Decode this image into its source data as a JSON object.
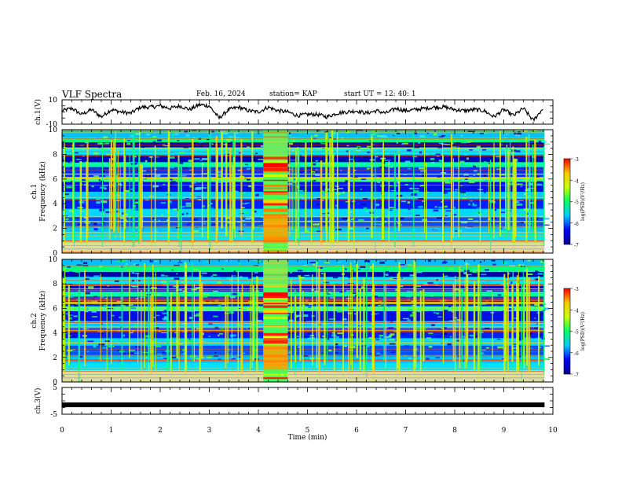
{
  "header": {
    "title": "VLF Spectra",
    "date": "Feb. 16, 2024",
    "station": "station= KAP",
    "start": "start  UT  =   12: 40: 1"
  },
  "chart_data": [
    {
      "type": "line",
      "panel": "ch1_waveform",
      "ylabel": "ch.1(V)",
      "ylim": [
        -10,
        10
      ],
      "y_ticks": [
        "10",
        "-10"
      ],
      "xlim": [
        0,
        10
      ],
      "series": [
        {
          "color": "#000000",
          "x": [
            0,
            0.2,
            0.4,
            0.6,
            0.8,
            1.0,
            1.2,
            1.4,
            1.6,
            1.8,
            2.0,
            2.2,
            2.4,
            2.6,
            2.8,
            3.0,
            3.2,
            3.4,
            3.6,
            3.8,
            4.0,
            4.2,
            4.4,
            4.6,
            4.8,
            5.0,
            5.2,
            5.4,
            5.6,
            5.8,
            6.0,
            6.2,
            6.4,
            6.6,
            6.8,
            7.0,
            7.2,
            7.4,
            7.6,
            7.8,
            8.0,
            8.2,
            8.4,
            8.6,
            8.8,
            9.0,
            9.2,
            9.4,
            9.6,
            9.8
          ],
          "values": [
            1,
            3,
            -2,
            2,
            -4,
            2,
            0,
            -1,
            4,
            4,
            5,
            3,
            5,
            2,
            6,
            5,
            -5,
            2,
            4,
            1,
            0,
            4,
            1,
            0,
            -3,
            -2,
            -2,
            -4,
            -1,
            0,
            1,
            -1,
            1,
            -1,
            3,
            1,
            2,
            3,
            4,
            4,
            2,
            1,
            2,
            1,
            -4,
            2,
            -3,
            3,
            -7,
            3
          ]
        }
      ]
    },
    {
      "type": "heatmap",
      "panel": "ch1_spectrogram",
      "ylabel": "ch.1\nFrequency  (kHz)",
      "ylim": [
        0,
        10
      ],
      "y_ticks": [
        "0",
        "2",
        "4",
        "6",
        "8",
        "10"
      ],
      "xlim": [
        0,
        10
      ],
      "data_extent_min": 9.83,
      "burst_interval_min": [
        4.1,
        4.6
      ],
      "colorbar": {
        "label": "log(PSD)(V²/Hz)",
        "range": [
          -7,
          -3
        ],
        "ticks": [
          "-3",
          "-4",
          "-5",
          "-6",
          "-7"
        ],
        "colors": [
          "#00008c",
          "#0000ff",
          "#00c8ff",
          "#00ff64",
          "#c8ff00",
          "#ffc800",
          "#ff0000"
        ]
      }
    },
    {
      "type": "heatmap",
      "panel": "ch2_spectrogram",
      "ylabel": "ch.2\nFrequency  (kHz)",
      "ylim": [
        0,
        10
      ],
      "y_ticks": [
        "0",
        "2",
        "4",
        "6",
        "8",
        "10"
      ],
      "xlim": [
        0,
        10
      ],
      "data_extent_min": 9.83,
      "burst_interval_min": [
        4.1,
        4.6
      ],
      "colorbar": {
        "label": "log(PSD)(V²/Hz)",
        "range": [
          -7,
          -3
        ],
        "ticks": [
          "-3",
          "-4",
          "-5",
          "-6",
          "-7"
        ],
        "colors": [
          "#00008c",
          "#0000ff",
          "#00c8ff",
          "#00ff64",
          "#c8ff00",
          "#ffc800",
          "#ff0000"
        ]
      }
    },
    {
      "type": "line",
      "panel": "ch3_waveform",
      "ylabel": "ch.3(V)",
      "ylim": [
        -5,
        5
      ],
      "y_ticks": [
        "5",
        "-5"
      ],
      "xlim": [
        0,
        10
      ],
      "series": [
        {
          "color": "#000000",
          "x": [
            0,
            9.83
          ],
          "values": [
            -1.5,
            -1.5
          ]
        }
      ],
      "xlabel": "Time  (min)",
      "x_ticks": [
        "0",
        "1",
        "2",
        "3",
        "4",
        "5",
        "6",
        "7",
        "8",
        "9",
        "10"
      ]
    }
  ]
}
